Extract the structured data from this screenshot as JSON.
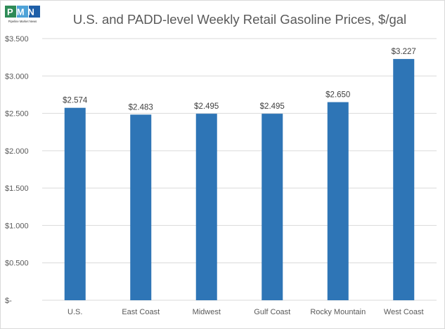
{
  "logo": {
    "letters": "PMN",
    "tagline": "Pipeline Market News"
  },
  "chart_data": {
    "type": "bar",
    "title": "U.S. and PADD-level Weekly Retail Gasoline Prices, $/gal",
    "categories": [
      "U.S.",
      "East Coast",
      "Midwest",
      "Gulf Coast",
      "Rocky Mountain",
      "West Coast"
    ],
    "values": [
      2.574,
      2.483,
      2.495,
      2.495,
      2.65,
      3.227
    ],
    "data_labels": [
      "$2.574",
      "$2.483",
      "$2.495",
      "$2.495",
      "$2.650",
      "$3.227"
    ],
    "y_ticks": [
      0,
      0.5,
      1.0,
      1.5,
      2.0,
      2.5,
      3.0,
      3.5
    ],
    "y_tick_labels": [
      "$-",
      "$0.500",
      "$1.000",
      "$1.500",
      "$2.000",
      "$2.500",
      "$3.000",
      "$3.500"
    ],
    "ylim": [
      0,
      3.5
    ],
    "xlabel": "",
    "ylabel": "",
    "grid": true,
    "legend": "none",
    "bar_color": "#2e75b6",
    "grid_color": "#d9d9d9"
  }
}
